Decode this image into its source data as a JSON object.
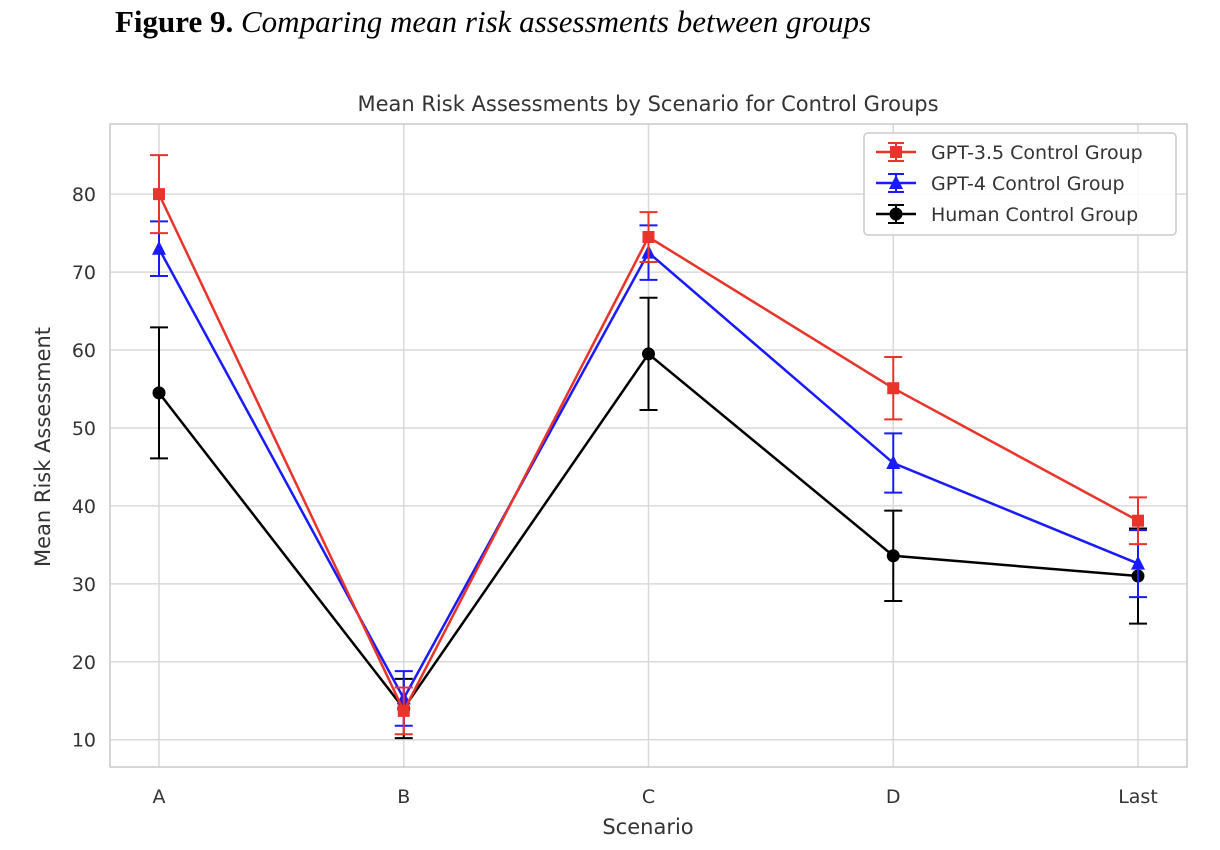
{
  "figure": {
    "label": "Figure 9.",
    "caption": "Comparing mean risk assessments between groups"
  },
  "chart_data": {
    "type": "line",
    "title": "Mean Risk Assessments by Scenario for Control Groups",
    "xlabel": "Scenario",
    "ylabel": "Mean Risk Assessment",
    "categories": [
      "A",
      "B",
      "C",
      "D",
      "Last"
    ],
    "yticks": [
      10,
      20,
      30,
      40,
      50,
      60,
      70,
      80
    ],
    "ylim": [
      6.5,
      89
    ],
    "grid": true,
    "legend_position": "top-right",
    "series": [
      {
        "name": "GPT-3.5 Control Group",
        "color": "#e8342a",
        "marker": "square",
        "values": [
          80,
          13.7,
          74.5,
          55.1,
          38.1
        ],
        "error": [
          5,
          3,
          3.2,
          4,
          3
        ]
      },
      {
        "name": "GPT-4 Control Group",
        "color": "#1a1aff",
        "marker": "triangle",
        "values": [
          73,
          15.3,
          72.5,
          45.5,
          32.6
        ],
        "error": [
          3.5,
          3.5,
          3.5,
          3.8,
          4.3
        ]
      },
      {
        "name": "Human Control Group",
        "color": "#000000",
        "marker": "circle",
        "values": [
          54.5,
          14,
          59.5,
          33.6,
          31
        ],
        "error": [
          8.4,
          3.8,
          7.2,
          5.8,
          6.1
        ]
      }
    ]
  }
}
